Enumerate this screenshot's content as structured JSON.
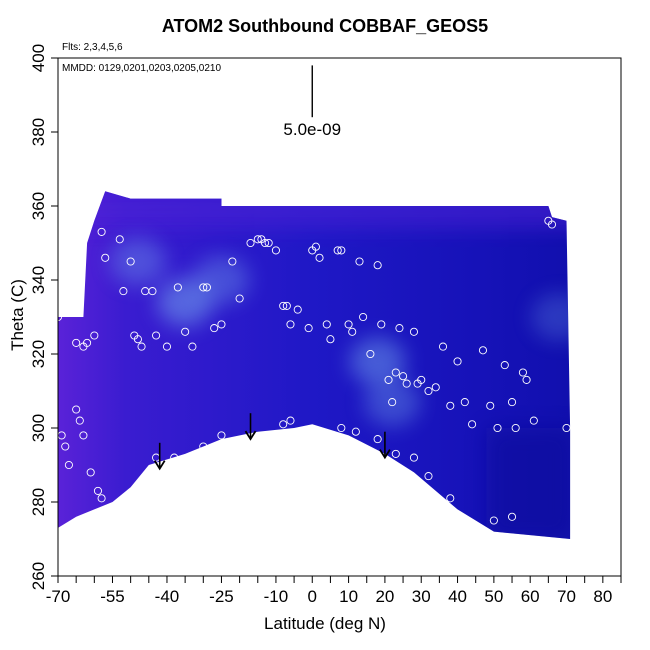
{
  "chart_data": {
    "type": "heatmap",
    "title": "ATOM2 Southbound COBBAF_GEOS5",
    "flights_note": "Flts: 2,3,4,5,6",
    "dates_note": "MMDD: 0129,0201,0203,0205,0210",
    "xlabel": "Latitude (deg N)",
    "ylabel": "Theta (C)",
    "xlim": [
      -70,
      85
    ],
    "ylim": [
      260,
      400
    ],
    "xticks": [
      -70,
      -55,
      -40,
      -25,
      -10,
      0,
      10,
      20,
      30,
      40,
      50,
      60,
      70,
      80
    ],
    "yticks": [
      260,
      280,
      300,
      320,
      340,
      360,
      380,
      400
    ],
    "scale_annotation": "5.0e-09",
    "scale_bar": {
      "x": 0,
      "y_top": 398,
      "y_bottom": 384
    },
    "colors": {
      "base": "#1a16c4",
      "edge": "#5020d8",
      "high": "#7ab0f2",
      "low": "#0a0a9a"
    },
    "field_region": {
      "top": [
        [
          -70,
          330
        ],
        [
          -63,
          330
        ],
        [
          -62,
          350
        ],
        [
          -60,
          356
        ],
        [
          -57,
          364
        ],
        [
          -50,
          362
        ],
        [
          -25,
          362
        ],
        [
          -25,
          360
        ],
        [
          65,
          360
        ],
        [
          66,
          357
        ],
        [
          70,
          356
        ],
        [
          71,
          300
        ]
      ],
      "bottom": [
        [
          71,
          270
        ],
        [
          50,
          272
        ],
        [
          40,
          278
        ],
        [
          28,
          288
        ],
        [
          20,
          293
        ],
        [
          10,
          298
        ],
        [
          0,
          301
        ],
        [
          -5,
          300
        ],
        [
          -15,
          299
        ],
        [
          -25,
          297
        ],
        [
          -35,
          293
        ],
        [
          -45,
          290
        ],
        [
          -50,
          284
        ],
        [
          -55,
          280
        ],
        [
          -60,
          278
        ],
        [
          -65,
          276
        ],
        [
          -70,
          273
        ]
      ]
    },
    "bright_regions": [
      {
        "lat": -35,
        "theta": 334,
        "strength": 0.5
      },
      {
        "lat": -48,
        "theta": 345,
        "strength": 0.35
      },
      {
        "lat": 18,
        "theta": 318,
        "strength": 0.45
      },
      {
        "lat": 22,
        "theta": 307,
        "strength": 0.35
      },
      {
        "lat": -25,
        "theta": 340,
        "strength": 0.35
      },
      {
        "lat": 68,
        "theta": 330,
        "strength": 0.25
      }
    ],
    "observations": [
      [
        -70,
        330
      ],
      [
        -69,
        335
      ],
      [
        -68,
        337
      ],
      [
        -67,
        334
      ],
      [
        -65,
        323
      ],
      [
        -63,
        322
      ],
      [
        -62,
        323
      ],
      [
        -60,
        325
      ],
      [
        -58,
        353
      ],
      [
        -57,
        346
      ],
      [
        -53,
        351
      ],
      [
        -52,
        337
      ],
      [
        -50,
        345
      ],
      [
        -49,
        325
      ],
      [
        -48,
        324
      ],
      [
        -47,
        322
      ],
      [
        -46,
        337
      ],
      [
        -44,
        337
      ],
      [
        -43,
        325
      ],
      [
        -40,
        322
      ],
      [
        -37,
        338
      ],
      [
        -35,
        326
      ],
      [
        -33,
        322
      ],
      [
        -30,
        338
      ],
      [
        -29,
        338
      ],
      [
        -27,
        327
      ],
      [
        -25,
        328
      ],
      [
        -22,
        345
      ],
      [
        -20,
        335
      ],
      [
        -17,
        350
      ],
      [
        -15,
        351
      ],
      [
        -14,
        351
      ],
      [
        -13,
        350
      ],
      [
        -12,
        350
      ],
      [
        -10,
        348
      ],
      [
        -8,
        333
      ],
      [
        -7,
        333
      ],
      [
        -6,
        328
      ],
      [
        -4,
        332
      ],
      [
        -1,
        327
      ],
      [
        0,
        348
      ],
      [
        1,
        349
      ],
      [
        2,
        346
      ],
      [
        4,
        328
      ],
      [
        5,
        324
      ],
      [
        7,
        348
      ],
      [
        8,
        348
      ],
      [
        10,
        328
      ],
      [
        11,
        326
      ],
      [
        13,
        345
      ],
      [
        14,
        330
      ],
      [
        16,
        320
      ],
      [
        18,
        344
      ],
      [
        19,
        328
      ],
      [
        21,
        313
      ],
      [
        22,
        307
      ],
      [
        23,
        315
      ],
      [
        24,
        327
      ],
      [
        25,
        314
      ],
      [
        26,
        312
      ],
      [
        28,
        326
      ],
      [
        29,
        312
      ],
      [
        30,
        313
      ],
      [
        32,
        310
      ],
      [
        34,
        311
      ],
      [
        36,
        322
      ],
      [
        38,
        306
      ],
      [
        40,
        318
      ],
      [
        42,
        307
      ],
      [
        44,
        301
      ],
      [
        47,
        321
      ],
      [
        49,
        306
      ],
      [
        51,
        300
      ],
      [
        53,
        317
      ],
      [
        55,
        307
      ],
      [
        56,
        300
      ],
      [
        58,
        315
      ],
      [
        59,
        313
      ],
      [
        61,
        302
      ],
      [
        65,
        356
      ],
      [
        66,
        355
      ],
      [
        70,
        300
      ],
      [
        -69,
        298
      ],
      [
        -68,
        295
      ],
      [
        -67,
        290
      ],
      [
        -65,
        305
      ],
      [
        -64,
        302
      ],
      [
        -63,
        298
      ],
      [
        -61,
        288
      ],
      [
        -59,
        283
      ],
      [
        -58,
        281
      ],
      [
        -43,
        292
      ],
      [
        -38,
        292
      ],
      [
        -30,
        295
      ],
      [
        -25,
        298
      ],
      [
        -8,
        301
      ],
      [
        -6,
        302
      ],
      [
        8,
        300
      ],
      [
        12,
        299
      ],
      [
        18,
        297
      ],
      [
        23,
        293
      ],
      [
        28,
        292
      ],
      [
        32,
        287
      ],
      [
        38,
        281
      ],
      [
        50,
        275
      ],
      [
        55,
        276
      ]
    ],
    "arrows": [
      {
        "lat": -42,
        "theta_start": 296,
        "theta_end": 289
      },
      {
        "lat": -17,
        "theta_start": 304,
        "theta_end": 297
      },
      {
        "lat": 20,
        "theta_start": 299,
        "theta_end": 292
      }
    ]
  }
}
